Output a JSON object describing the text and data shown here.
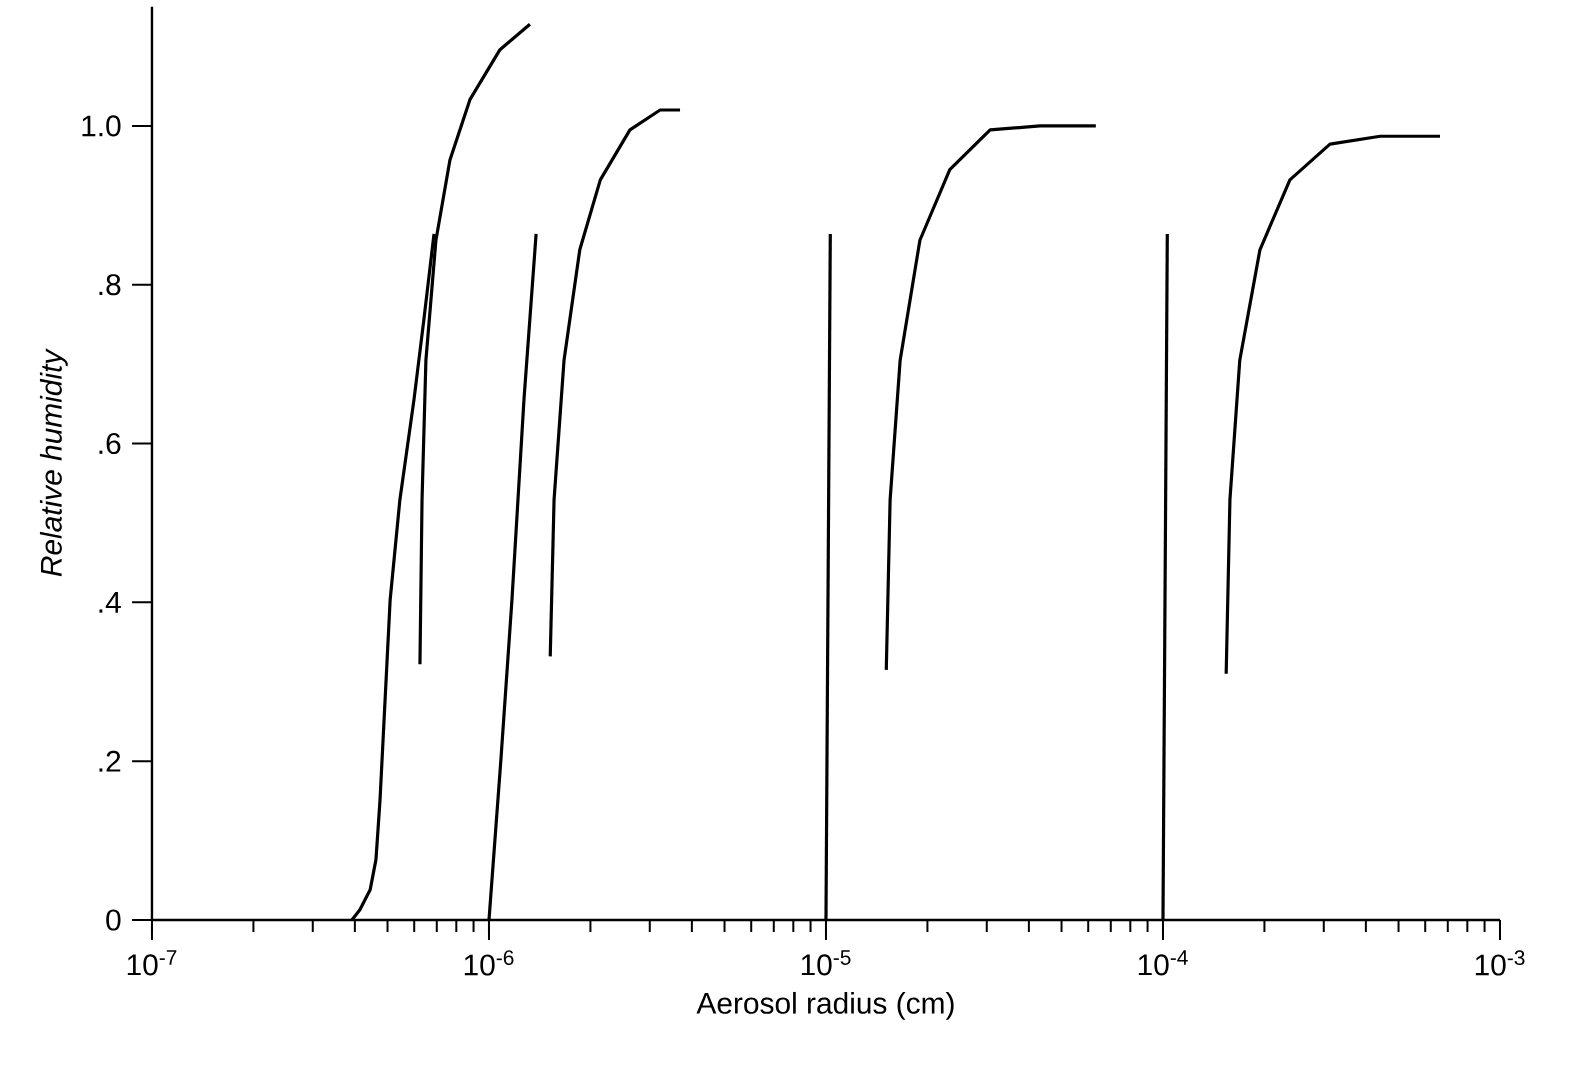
{
  "chart_data": {
    "type": "line",
    "xlabel": "Aerosol radius (cm)",
    "ylabel": "Relative humidity",
    "log": "x",
    "grid": false,
    "marker": "none",
    "line_style": "solid",
    "xlim": [
      1e-07,
      0.001
    ],
    "ylim": [
      0,
      1.15
    ],
    "xticks": [
      {
        "value": 1e-07,
        "label": "10$^{-7}$"
      },
      {
        "value": 1e-06,
        "label": "10$^{-6}$"
      },
      {
        "value": 1e-05,
        "label": "10$^{-5}$"
      },
      {
        "value": 0.0001,
        "label": "10$^{-4}$"
      },
      {
        "value": 0.001,
        "label": "10$^{-3}$"
      }
    ],
    "yticks": [
      0,
      {
        "value": 0.2,
        "label": ".2"
      },
      {
        "value": 0.4,
        "label": ".4"
      },
      {
        "value": 0.6,
        "label": ".6"
      },
      {
        "value": 0.8,
        "label": ".8"
      },
      {
        "value": 1.0,
        "label": "1.0"
      }
    ],
    "series": [
      {
        "color": "#000000",
        "x": [
          3.92e-07,
          4.14e-07,
          4.44e-07,
          4.62e-07,
          4.75e-07,
          5.09e-07,
          5.44e-07,
          5.99e-07,
          6.41e-07,
          6.87e-07
        ],
        "values": [
          0,
          0.013,
          0.038,
          0.076,
          0.151,
          0.403,
          0.529,
          0.655,
          0.756,
          0.864
        ]
      },
      {
        "color": "#000000",
        "x": [
          6.24e-07,
          6.33e-07,
          6.5e-07,
          6.96e-07,
          7.66e-07,
          8.78e-07,
          1.078e-06,
          1.323e-06
        ],
        "values": [
          0.322,
          0.529,
          0.705,
          0.856,
          0.957,
          1.033,
          1.096,
          1.128
        ]
      },
      {
        "color": "#000000",
        "x": [
          1e-06,
          1.085e-06,
          1.17e-06,
          1.27e-06,
          1.38e-06
        ],
        "values": [
          0,
          0.202,
          0.403,
          0.655,
          0.864
        ]
      },
      {
        "color": "#000000",
        "x": [
          1.52e-06,
          1.56e-06,
          1.67e-06,
          1.86e-06,
          2.14e-06,
          2.62e-06,
          3.22e-06,
          3.69e-06
        ],
        "values": [
          0.332,
          0.529,
          0.705,
          0.844,
          0.932,
          0.995,
          1.02,
          1.02
        ]
      },
      {
        "color": "#000000",
        "x": [
          1e-05,
          1.03e-05
        ],
        "values": [
          0,
          0.864
        ]
      },
      {
        "color": "#000000",
        "x": [
          1.51e-05,
          1.55e-05,
          1.66e-05,
          1.9e-05,
          2.33e-05,
          3.07e-05,
          4.32e-05,
          6.32e-05
        ],
        "values": [
          0.315,
          0.529,
          0.705,
          0.856,
          0.945,
          0.995,
          1.0,
          1.0
        ]
      },
      {
        "color": "#000000",
        "x": [
          0.0001,
          0.000103
        ],
        "values": [
          0,
          0.864
        ]
      },
      {
        "color": "#000000",
        "x": [
          0.000154,
          0.000158,
          0.000169,
          0.000194,
          0.000238,
          0.000313,
          0.000441,
          0.000664
        ],
        "values": [
          0.31,
          0.529,
          0.705,
          0.844,
          0.932,
          0.977,
          0.987,
          0.987
        ]
      }
    ]
  }
}
